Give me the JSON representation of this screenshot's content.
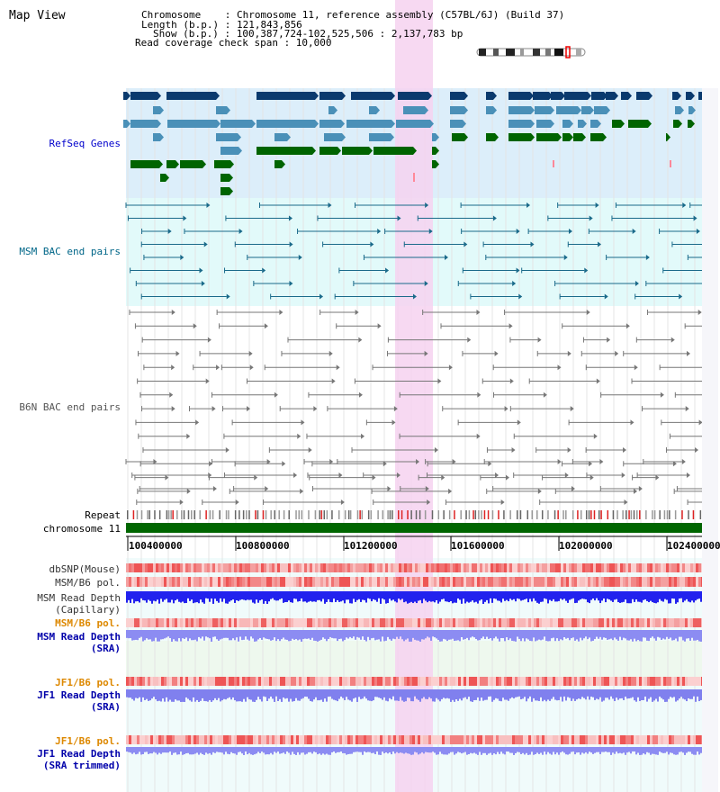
{
  "header": {
    "title": "Map View",
    "info_lines": [
      "Chromosome    : Chromosome 11, reference assembly (C57BL/6J) (Build 37)",
      "Length (b.p.) : 121,843,856",
      "Show (b.p.) : 100,387,724-102,525,506 : 2,137,783 bp",
      "Read coverage check span : 10,000"
    ]
  },
  "tracks": {
    "refseq": "RefSeq Genes",
    "msm_bac": "MSM BAC end pairs",
    "b6n_bac": "B6N BAC end pairs",
    "repeat": "Repeat",
    "chromosome": "chromosome 11",
    "dbsnp": "dbSNP(Mouse)",
    "msm_b6_pol_1": "MSM/B6 pol.",
    "msm_read_depth_cap_1": "MSM Read Depth",
    "msm_read_depth_cap_2": "(Capillary)",
    "msm_b6_pol_2": "MSM/B6 pol.",
    "msm_read_depth_sra_1": "MSM Read Depth",
    "msm_read_depth_sra_2": "(SRA)",
    "jf1_b6_pol_1": "JF1/B6 pol.",
    "jf1_read_depth_1": "JF1 Read Depth",
    "jf1_read_depth_2": "(SRA)",
    "jf1_b6_pol_2": "JF1/B6 pol.",
    "jf1_read_depth_trim_1": "JF1 Read Depth",
    "jf1_read_depth_trim_2": "(SRA trimmed)"
  },
  "axis": {
    "ticks": [
      "100400000",
      "100800000",
      "101200000",
      "101600000",
      "102000000",
      "102400000"
    ]
  },
  "colors": {
    "refseq_label": "#0000cc",
    "msm_bac_label": "#006688",
    "b6n_bac_label": "#555555",
    "orange_label": "#dd8800",
    "blue_label": "#0000aa",
    "refseq_bg": "#dceefa",
    "bac_bg": "#e2fafa",
    "highlight": "#f6d2f0",
    "gene_dark": "#0a3a6e",
    "gene_light": "#4a90b8",
    "gene_green": "#006400",
    "chromosome": "#006600"
  }
}
